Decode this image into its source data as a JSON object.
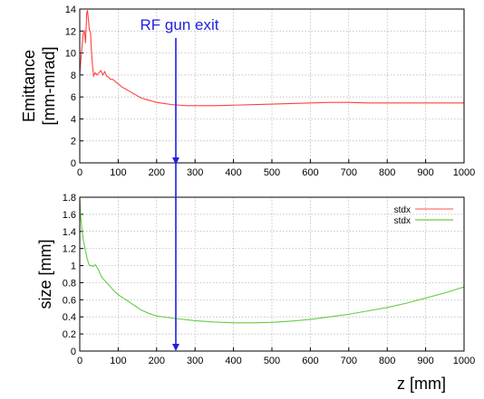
{
  "chart_data": [
    {
      "type": "line",
      "xlim": [
        0,
        1000
      ],
      "ylim": [
        0,
        14
      ],
      "ylabel_lines": [
        "Emittance",
        "[mm-mrad]"
      ],
      "xticks": [
        "0",
        "100",
        "200",
        "300",
        "400",
        "500",
        "600",
        "700",
        "800",
        "900",
        "1000"
      ],
      "yticks": [
        "0",
        "2",
        "4",
        "6",
        "8",
        "10",
        "12",
        "14"
      ],
      "grid": true,
      "series": [
        {
          "color": "#ff4040",
          "x": [
            0,
            3,
            6,
            9,
            12,
            15,
            18,
            20,
            22,
            25,
            28,
            30,
            33,
            36,
            40,
            45,
            50,
            55,
            60,
            65,
            70,
            75,
            80,
            85,
            90,
            95,
            100,
            110,
            120,
            130,
            140,
            150,
            160,
            170,
            180,
            190,
            200,
            220,
            240,
            260,
            280,
            300,
            350,
            400,
            450,
            500,
            550,
            600,
            650,
            700,
            750,
            800,
            850,
            900,
            950,
            1000
          ],
          "y": [
            8.0,
            9.5,
            10.6,
            11.8,
            12.0,
            10.9,
            13.6,
            13.9,
            13.2,
            12.1,
            11.9,
            10.4,
            8.9,
            7.9,
            8.2,
            8.0,
            8.2,
            8.4,
            8.0,
            8.3,
            7.9,
            7.8,
            7.6,
            7.6,
            7.5,
            7.3,
            7.2,
            6.9,
            6.7,
            6.5,
            6.3,
            6.1,
            5.9,
            5.8,
            5.7,
            5.6,
            5.5,
            5.4,
            5.3,
            5.25,
            5.2,
            5.2,
            5.2,
            5.25,
            5.3,
            5.35,
            5.4,
            5.45,
            5.5,
            5.5,
            5.45,
            5.45,
            5.45,
            5.45,
            5.45,
            5.45
          ]
        }
      ],
      "annotation": {
        "text": "RF gun exit",
        "x": 250
      }
    },
    {
      "type": "line",
      "xlim": [
        0,
        1000
      ],
      "ylim": [
        0,
        1.8
      ],
      "ylabel": "size [mm]",
      "xlabel": "z [mm]",
      "xticks": [
        "0",
        "100",
        "200",
        "300",
        "400",
        "500",
        "600",
        "700",
        "800",
        "900",
        "1000"
      ],
      "yticks": [
        "0",
        "0.2",
        "0.4",
        "0.6",
        "0.8",
        "1",
        "1.2",
        "1.4",
        "1.6",
        "1.8"
      ],
      "grid": true,
      "legend": {
        "placement": "top-right",
        "entries": [
          "stdx",
          "stdx"
        ]
      },
      "series": [
        {
          "legend_label": "stdx",
          "color": "#ff7070",
          "x": [],
          "y": []
        },
        {
          "legend_label": "stdx",
          "color": "#66cc44",
          "x": [
            0,
            2,
            5,
            10,
            15,
            20,
            25,
            30,
            35,
            40,
            45,
            50,
            55,
            60,
            70,
            80,
            90,
            100,
            120,
            140,
            160,
            180,
            200,
            250,
            300,
            350,
            400,
            450,
            500,
            550,
            600,
            650,
            700,
            750,
            800,
            850,
            900,
            950,
            1000
          ],
          "y": [
            1.8,
            1.6,
            1.45,
            1.28,
            1.17,
            1.07,
            1.0,
            1.0,
            0.99,
            1.01,
            0.98,
            0.94,
            0.88,
            0.85,
            0.8,
            0.75,
            0.7,
            0.66,
            0.6,
            0.54,
            0.48,
            0.44,
            0.41,
            0.38,
            0.355,
            0.34,
            0.33,
            0.33,
            0.335,
            0.35,
            0.37,
            0.4,
            0.43,
            0.47,
            0.51,
            0.56,
            0.62,
            0.68,
            0.75
          ]
        }
      ]
    }
  ]
}
